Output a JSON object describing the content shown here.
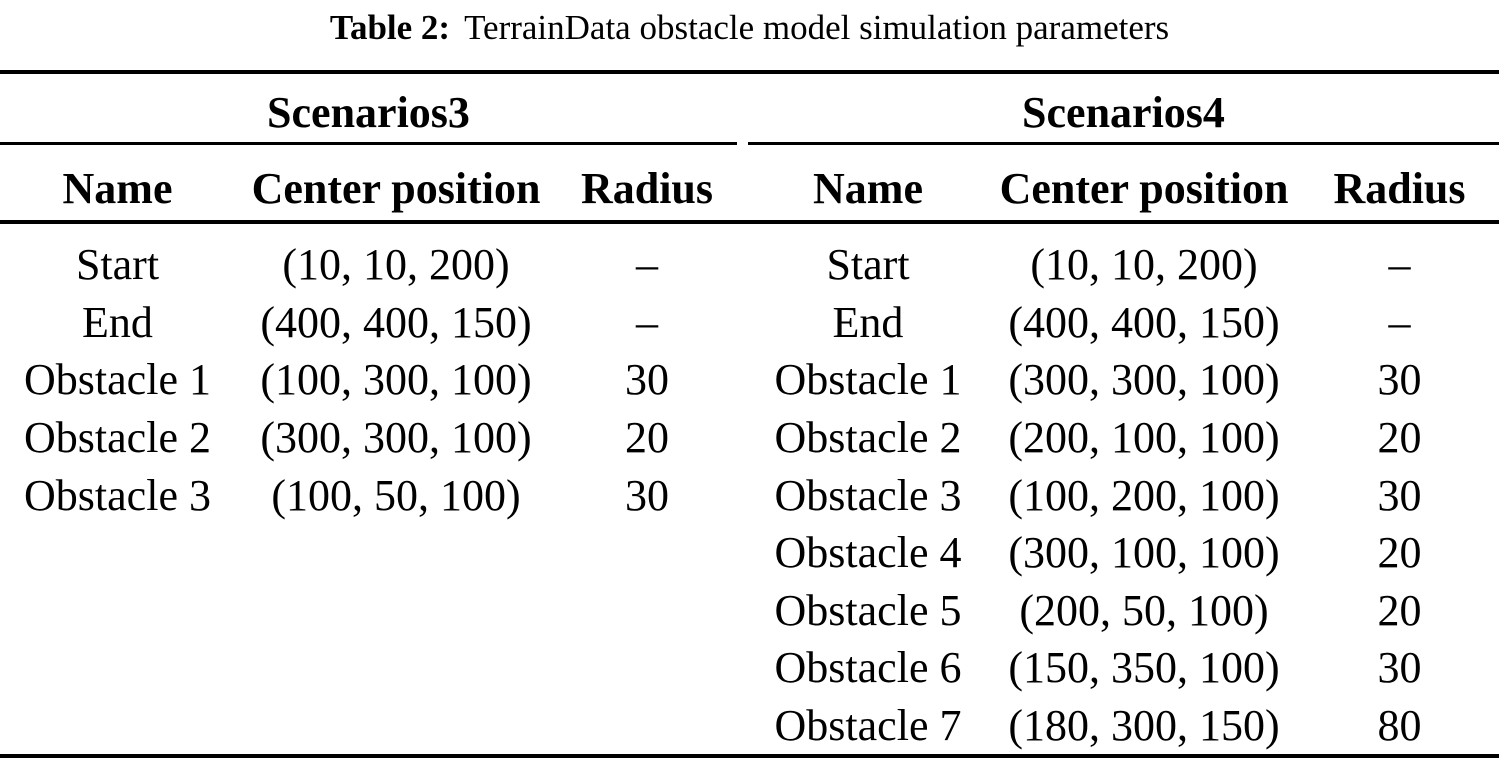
{
  "caption": {
    "label": "Table 2:",
    "text": "TerrainData obstacle model simulation parameters"
  },
  "colors": {
    "background": "#ffffff",
    "text": "#000000",
    "rule": "#000000"
  },
  "tables": [
    {
      "name": "Scenarios3",
      "columns": {
        "name": "Name",
        "position": "Center position",
        "radius": "Radius"
      },
      "rows": [
        {
          "name": "Start",
          "pos": "(10, 10, 200)",
          "radius": "–"
        },
        {
          "name": "End",
          "pos": "(400, 400, 150)",
          "radius": "–"
        },
        {
          "name": "Obstacle 1",
          "pos": "(100, 300, 100)",
          "radius": "30"
        },
        {
          "name": "Obstacle 2",
          "pos": "(300, 300, 100)",
          "radius": "20"
        },
        {
          "name": "Obstacle 3",
          "pos": "(100, 50, 100)",
          "radius": "30"
        }
      ]
    },
    {
      "name": "Scenarios4",
      "columns": {
        "name": "Name",
        "position": "Center position",
        "radius": "Radius"
      },
      "rows": [
        {
          "name": "Start",
          "pos": "(10, 10, 200)",
          "radius": "–"
        },
        {
          "name": "End",
          "pos": "(400, 400, 150)",
          "radius": "–"
        },
        {
          "name": "Obstacle 1",
          "pos": "(300, 300, 100)",
          "radius": "30"
        },
        {
          "name": "Obstacle 2",
          "pos": "(200, 100, 100)",
          "radius": "20"
        },
        {
          "name": "Obstacle 3",
          "pos": "(100, 200, 100)",
          "radius": "30"
        },
        {
          "name": "Obstacle 4",
          "pos": "(300, 100, 100)",
          "radius": "20"
        },
        {
          "name": "Obstacle 5",
          "pos": "(200, 50, 100)",
          "radius": "20"
        },
        {
          "name": "Obstacle 6",
          "pos": "(150, 350, 100)",
          "radius": "30"
        },
        {
          "name": "Obstacle 7",
          "pos": "(180, 300, 150)",
          "radius": "80"
        }
      ]
    }
  ]
}
